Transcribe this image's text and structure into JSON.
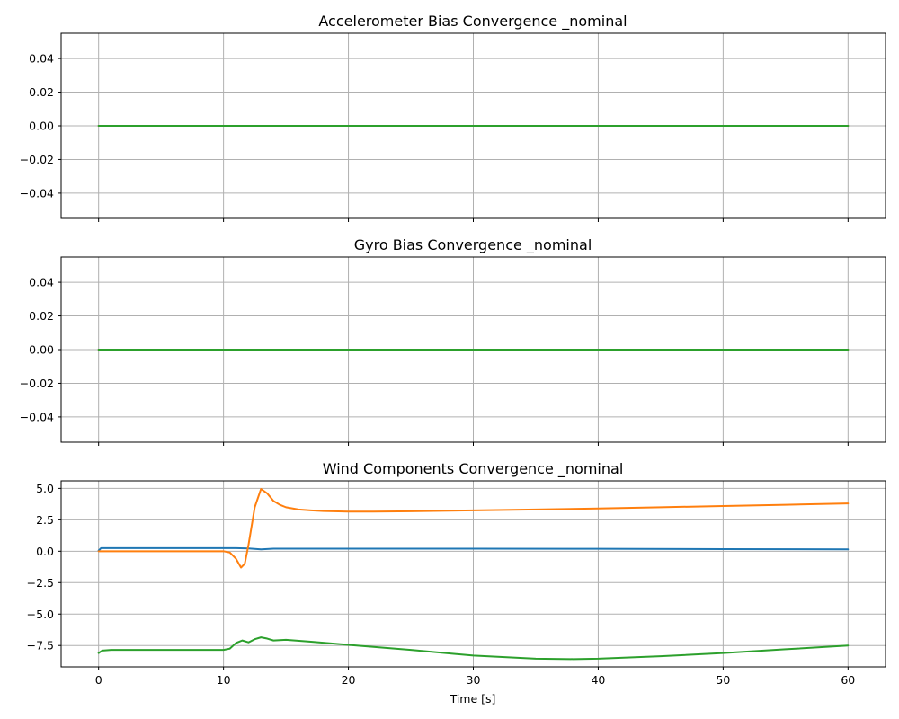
{
  "chart_data": [
    {
      "type": "line",
      "title": "Accelerometer Bias Convergence _nominal",
      "xlabel": "",
      "ylabel": "",
      "xlim": [
        -3,
        63
      ],
      "ylim": [
        -0.055,
        0.055
      ],
      "xticks": [
        0,
        10,
        20,
        30,
        40,
        50,
        60
      ],
      "xtick_labels_visible": false,
      "yticks": [
        -0.04,
        -0.02,
        0.0,
        0.02,
        0.04
      ],
      "ytick_labels": [
        "−0.04",
        "−0.02",
        "0.00",
        "0.02",
        "0.04"
      ],
      "grid": true,
      "series": [
        {
          "color": "#1f77b4",
          "x": [
            0,
            60
          ],
          "y": [
            0,
            0
          ]
        },
        {
          "color": "#ff7f0e",
          "x": [
            0,
            60
          ],
          "y": [
            0,
            0
          ]
        },
        {
          "color": "#2ca02c",
          "x": [
            0,
            60
          ],
          "y": [
            0,
            0
          ]
        }
      ]
    },
    {
      "type": "line",
      "title": "Gyro Bias Convergence _nominal",
      "xlabel": "",
      "ylabel": "",
      "xlim": [
        -3,
        63
      ],
      "ylim": [
        -0.055,
        0.055
      ],
      "xticks": [
        0,
        10,
        20,
        30,
        40,
        50,
        60
      ],
      "xtick_labels_visible": false,
      "yticks": [
        -0.04,
        -0.02,
        0.0,
        0.02,
        0.04
      ],
      "ytick_labels": [
        "−0.04",
        "−0.02",
        "0.00",
        "0.02",
        "0.04"
      ],
      "grid": true,
      "series": [
        {
          "color": "#1f77b4",
          "x": [
            0,
            60
          ],
          "y": [
            0,
            0
          ]
        },
        {
          "color": "#ff7f0e",
          "x": [
            0,
            60
          ],
          "y": [
            0,
            0
          ]
        },
        {
          "color": "#2ca02c",
          "x": [
            0,
            60
          ],
          "y": [
            0,
            0
          ]
        }
      ]
    },
    {
      "type": "line",
      "title": "Wind Components Convergence _nominal",
      "xlabel": "Time [s]",
      "ylabel": "",
      "xlim": [
        -3,
        63
      ],
      "ylim": [
        -9.2,
        5.6
      ],
      "xticks": [
        0,
        10,
        20,
        30,
        40,
        50,
        60
      ],
      "xtick_labels": [
        "0",
        "10",
        "20",
        "30",
        "40",
        "50",
        "60"
      ],
      "xtick_labels_visible": true,
      "yticks": [
        -7.5,
        -5.0,
        -2.5,
        0.0,
        2.5,
        5.0
      ],
      "ytick_labels": [
        "−7.5",
        "−5.0",
        "−2.5",
        "0.0",
        "2.5",
        "5.0"
      ],
      "grid": true,
      "series": [
        {
          "color": "#1f77b4",
          "x": [
            0,
            0.2,
            5,
            10,
            11,
            12,
            13,
            14,
            20,
            30,
            40,
            50,
            60
          ],
          "y": [
            0.05,
            0.25,
            0.25,
            0.25,
            0.25,
            0.22,
            0.15,
            0.2,
            0.2,
            0.2,
            0.19,
            0.17,
            0.15
          ]
        },
        {
          "color": "#ff7f0e",
          "x": [
            0,
            5,
            10,
            10.5,
            11,
            11.4,
            11.7,
            12,
            12.5,
            13,
            13.5,
            14,
            14.5,
            15,
            16,
            17,
            18,
            20,
            22,
            25,
            30,
            35,
            40,
            45,
            50,
            55,
            60
          ],
          "y": [
            0,
            0,
            0,
            -0.1,
            -0.6,
            -1.3,
            -1.0,
            0.5,
            3.5,
            4.95,
            4.6,
            4.0,
            3.7,
            3.5,
            3.32,
            3.25,
            3.2,
            3.15,
            3.15,
            3.18,
            3.25,
            3.32,
            3.4,
            3.5,
            3.6,
            3.7,
            3.8
          ]
        },
        {
          "color": "#2ca02c",
          "x": [
            0,
            0.3,
            1,
            5,
            10,
            10.5,
            11,
            11.5,
            12,
            12.5,
            13,
            13.5,
            14,
            15,
            17,
            20,
            25,
            30,
            35,
            38,
            40,
            45,
            50,
            55,
            60
          ],
          "y": [
            -8.1,
            -7.9,
            -7.85,
            -7.85,
            -7.85,
            -7.75,
            -7.3,
            -7.1,
            -7.25,
            -7.0,
            -6.85,
            -6.95,
            -7.1,
            -7.05,
            -7.2,
            -7.45,
            -7.85,
            -8.3,
            -8.55,
            -8.58,
            -8.55,
            -8.35,
            -8.1,
            -7.8,
            -7.5
          ]
        }
      ]
    }
  ]
}
